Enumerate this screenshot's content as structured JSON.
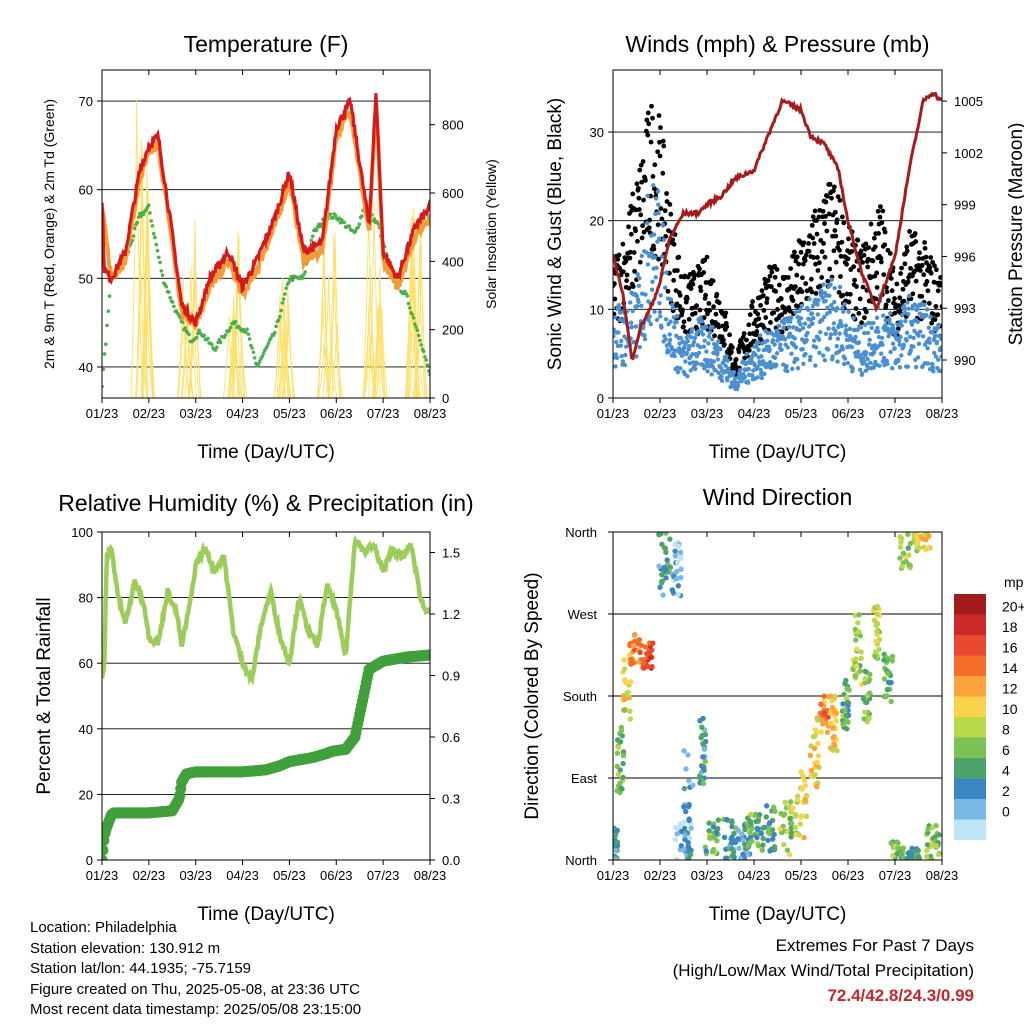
{
  "x_ticks": [
    "01/23",
    "02/23",
    "03/23",
    "04/23",
    "05/23",
    "06/23",
    "07/23",
    "08/23"
  ],
  "x_label": "Time (Day/UTC)",
  "chart_data": [
    {
      "type": "line",
      "title": "Temperature (F)",
      "ylabel": "2m & 9m T (Red, Orange) & 2m Td (Green)",
      "ylabel_right": "Solar Insolation (Yellow)",
      "ylim": [
        36.5,
        73.5
      ],
      "ylim_right": [
        0,
        960
      ],
      "yticks": [
        40,
        50,
        60,
        70
      ],
      "yticks_right": [
        0,
        200,
        400,
        600,
        800
      ],
      "grid": true,
      "series": [
        {
          "name": "2m T",
          "color": "#d7191c",
          "x": [
            0,
            0.05,
            0.2,
            0.5,
            0.8,
            1.0,
            1.2,
            1.5,
            1.7,
            2.0,
            2.3,
            2.7,
            3.0,
            3.3,
            3.7,
            4.0,
            4.3,
            4.7,
            5.0,
            5.3,
            5.7,
            5.85,
            6.0,
            6.3,
            6.7,
            7.0
          ],
          "values": [
            59,
            51,
            50,
            53,
            62,
            65,
            66,
            55,
            47,
            45,
            50,
            53,
            49,
            52,
            57,
            62,
            53,
            54,
            67,
            70,
            56,
            71,
            53,
            50,
            56,
            58
          ]
        },
        {
          "name": "9m T",
          "color": "#f39c35",
          "x": [
            0,
            0.2,
            0.5,
            0.8,
            1.0,
            1.2,
            1.5,
            1.7,
            2.0,
            2.3,
            2.7,
            3.0,
            3.3,
            3.7,
            4.0,
            4.3,
            4.7,
            5.0,
            5.3,
            5.7,
            5.85,
            6.0,
            6.3,
            6.7,
            7.0
          ],
          "values": [
            58,
            50,
            52,
            61,
            64,
            65,
            54,
            46,
            45,
            49,
            52,
            48,
            51,
            56,
            61,
            52,
            53,
            66,
            69,
            55,
            70,
            52,
            49,
            55,
            57
          ]
        },
        {
          "name": "2m Td",
          "color": "#4daf4a",
          "x": [
            0,
            0.2,
            0.5,
            0.8,
            1.0,
            1.3,
            1.6,
            1.9,
            2.1,
            2.4,
            2.8,
            3.1,
            3.3,
            3.7,
            4.0,
            4.3,
            4.5,
            4.8,
            5.0,
            5.4,
            5.6,
            5.9,
            6.2,
            6.5,
            6.8,
            7.0
          ],
          "values": [
            38,
            50,
            52,
            57,
            58,
            50,
            46,
            43,
            44,
            42,
            45,
            44,
            40,
            44,
            50,
            50,
            55,
            57,
            57,
            55,
            58,
            56,
            50,
            48,
            43,
            39
          ]
        },
        {
          "name": "Solar Insolation",
          "color": "#ffe066",
          "axis": "right",
          "peaks": [
            [
              0.9,
              930
            ],
            [
              1.85,
              560
            ],
            [
              2.85,
              520
            ],
            [
              3.85,
              460
            ],
            [
              4.85,
              520
            ],
            [
              5.85,
              620
            ],
            [
              6.75,
              570
            ]
          ]
        }
      ]
    },
    {
      "type": "scatter",
      "title": "Winds (mph) & Pressure (mb)",
      "ylabel": "Sonic Wind & Gust (Blue, Black)",
      "ylabel_right": "Station Pressure (Maroon)",
      "ylim": [
        0,
        37
      ],
      "ylim_right": [
        987.8,
        1006.8
      ],
      "yticks": [
        0,
        10,
        20,
        30
      ],
      "yticks_right": [
        990,
        993,
        996,
        999,
        1002,
        1005
      ],
      "grid": true,
      "series": [
        {
          "name": "Gust",
          "color": "#000000",
          "x": [
            0,
            0.2,
            0.5,
            0.8,
            1.0,
            1.2,
            1.5,
            1.8,
            2.0,
            2.3,
            2.6,
            3.0,
            3.3,
            3.7,
            4.0,
            4.3,
            4.7,
            5.0,
            5.3,
            5.7,
            6.0,
            6.3,
            6.7,
            7.0
          ],
          "values": [
            14,
            16,
            22,
            30,
            28,
            20,
            12,
            13,
            14,
            11,
            4,
            10,
            13,
            13,
            16,
            19,
            22,
            17,
            15,
            20,
            12,
            17,
            15,
            12
          ]
        },
        {
          "name": "Wind",
          "color": "#4a90d0",
          "x": [
            0,
            0.2,
            0.5,
            0.8,
            1.0,
            1.2,
            1.5,
            1.8,
            2.0,
            2.3,
            2.6,
            3.0,
            3.3,
            3.7,
            4.0,
            4.3,
            4.7,
            5.0,
            5.3,
            5.7,
            6.0,
            6.3,
            6.7,
            7.0
          ],
          "values": [
            9,
            8,
            10,
            20,
            18,
            10,
            5,
            7,
            7,
            5,
            2,
            5,
            6,
            7,
            8,
            9,
            11,
            8,
            6,
            9,
            7,
            9,
            8,
            6
          ]
        },
        {
          "name": "Pressure",
          "color": "#a51c1c",
          "axis": "right",
          "x": [
            0,
            0.2,
            0.4,
            0.6,
            0.8,
            1.0,
            1.2,
            1.5,
            1.8,
            2.0,
            2.3,
            2.6,
            3.0,
            3.3,
            3.6,
            4.0,
            4.2,
            4.5,
            4.8,
            5.0,
            5.3,
            5.6,
            6.0,
            6.3,
            6.6,
            6.8,
            7.0
          ],
          "values": [
            996,
            994,
            990,
            992,
            993,
            994.5,
            997,
            998.5,
            998.5,
            999,
            999.5,
            1000.5,
            1001,
            1003,
            1005,
            1004.5,
            1003,
            1002.5,
            1001,
            998,
            995,
            993,
            996,
            1001,
            1005,
            1005.5,
            1005
          ]
        }
      ]
    },
    {
      "type": "line",
      "title": "Relative Humidity (%) & Precipitation (in)",
      "ylabel": "Percent & Total Rainfall",
      "ylim": [
        0,
        100
      ],
      "ylim_right": [
        0,
        1.6
      ],
      "yticks": [
        0,
        20,
        40,
        60,
        80,
        100
      ],
      "yticks_right": [
        "0.0",
        "0.3",
        "0.6",
        "0.9",
        "1.2",
        "1.5"
      ],
      "grid": true,
      "series": [
        {
          "name": "Relative Humidity",
          "color": "#9ccc5a",
          "x": [
            0,
            0.05,
            0.1,
            0.2,
            0.35,
            0.5,
            0.7,
            0.9,
            1.0,
            1.2,
            1.4,
            1.6,
            1.7,
            1.9,
            2.0,
            2.2,
            2.4,
            2.6,
            2.8,
            3.0,
            3.2,
            3.4,
            3.6,
            3.8,
            4.0,
            4.2,
            4.4,
            4.6,
            4.8,
            5.0,
            5.2,
            5.4,
            5.6,
            5.8,
            6.0,
            6.2,
            6.4,
            6.6,
            6.8,
            6.9,
            7.0
          ],
          "values": [
            55,
            60,
            92,
            95,
            80,
            72,
            85,
            78,
            68,
            66,
            82,
            75,
            65,
            80,
            90,
            95,
            88,
            93,
            70,
            60,
            55,
            72,
            82,
            68,
            60,
            80,
            70,
            65,
            84,
            76,
            62,
            98,
            94,
            96,
            88,
            95,
            92,
            96,
            80,
            76,
            77
          ]
        },
        {
          "name": "Total Precipitation",
          "color": "#41a03c",
          "axis": "right",
          "x": [
            0,
            0.05,
            0.1,
            0.2,
            0.25,
            0.5,
            1.0,
            1.5,
            1.65,
            1.7,
            1.8,
            2.0,
            2.5,
            3.0,
            3.5,
            3.8,
            4.0,
            4.5,
            4.8,
            4.9,
            5.2,
            5.4,
            5.6,
            5.7,
            6.0,
            6.5,
            7.0
          ],
          "values": [
            0.0,
            0.12,
            0.16,
            0.22,
            0.23,
            0.23,
            0.23,
            0.24,
            0.3,
            0.38,
            0.42,
            0.43,
            0.43,
            0.43,
            0.44,
            0.46,
            0.48,
            0.5,
            0.52,
            0.53,
            0.54,
            0.6,
            0.82,
            0.93,
            0.97,
            0.99,
            1.0
          ]
        }
      ]
    },
    {
      "type": "scatter",
      "title": "Wind Direction",
      "ylabel": "Direction (Colored By Speed)",
      "ycategories": [
        "North",
        "East",
        "South",
        "West",
        "North"
      ],
      "ylim": [
        0,
        360
      ],
      "grid": true,
      "clusters": [
        [
          0.05,
          15,
          20,
          0.1,
          5
        ],
        [
          0.15,
          110,
          40,
          0.15,
          8
        ],
        [
          0.3,
          190,
          40,
          0.2,
          11
        ],
        [
          0.5,
          230,
          20,
          0.3,
          16
        ],
        [
          0.75,
          225,
          15,
          0.2,
          18
        ],
        [
          1.1,
          330,
          40,
          0.25,
          5
        ],
        [
          1.35,
          320,
          30,
          0.2,
          2
        ],
        [
          1.5,
          20,
          25,
          0.35,
          2
        ],
        [
          1.6,
          60,
          60,
          0.2,
          4
        ],
        [
          1.9,
          120,
          40,
          0.15,
          5
        ],
        [
          2.1,
          25,
          20,
          0.3,
          7
        ],
        [
          2.5,
          20,
          25,
          0.3,
          5
        ],
        [
          2.8,
          20,
          20,
          0.3,
          4
        ],
        [
          3.0,
          30,
          20,
          0.3,
          7
        ],
        [
          3.3,
          35,
          25,
          0.3,
          6
        ],
        [
          3.7,
          35,
          30,
          0.3,
          9
        ],
        [
          4.0,
          60,
          40,
          0.25,
          11
        ],
        [
          4.3,
          120,
          40,
          0.2,
          12
        ],
        [
          4.5,
          160,
          20,
          0.2,
          15
        ],
        [
          4.7,
          150,
          30,
          0.15,
          12
        ],
        [
          4.95,
          170,
          30,
          0.15,
          7
        ],
        [
          5.2,
          230,
          40,
          0.2,
          9
        ],
        [
          5.4,
          180,
          30,
          0.15,
          7
        ],
        [
          5.6,
          250,
          30,
          0.15,
          10
        ],
        [
          5.85,
          200,
          30,
          0.2,
          6
        ],
        [
          6.05,
          10,
          10,
          0.3,
          8
        ],
        [
          6.4,
          5,
          8,
          0.3,
          6
        ],
        [
          6.8,
          20,
          20,
          0.3,
          8
        ],
        [
          6.3,
          340,
          20,
          0.4,
          9
        ],
        [
          6.6,
          350,
          10,
          0.3,
          11
        ]
      ]
    }
  ],
  "legend": {
    "title": "mph",
    "labels": [
      "20+",
      "18",
      "16",
      "14",
      "12",
      "10",
      "8",
      "6",
      "4",
      "2",
      "0"
    ],
    "colors": [
      "#a01b1b",
      "#cc2929",
      "#e8492e",
      "#f36c2a",
      "#f9a33a",
      "#fbd24b",
      "#b9d84a",
      "#7cc156",
      "#4da36a",
      "#3b86c2",
      "#7ab8e5",
      "#bfe3f7"
    ]
  },
  "info": {
    "location": "Location: Philadelphia",
    "elevation": "Station elevation: 130.912 m",
    "latlon": "Station lat/lon: 44.1935; -75.7159",
    "created": "Figure created on Thu, 2025-05-08, at 23:36 UTC",
    "recent": "Most recent data timestamp: 2025/05/08 23:15:00"
  },
  "extremes": {
    "title": "Extremes For Past 7 Days",
    "subtitle": "(High/Low/Max Wind/Total Precipitation)",
    "values": "72.4/42.8/24.3/0.99"
  }
}
